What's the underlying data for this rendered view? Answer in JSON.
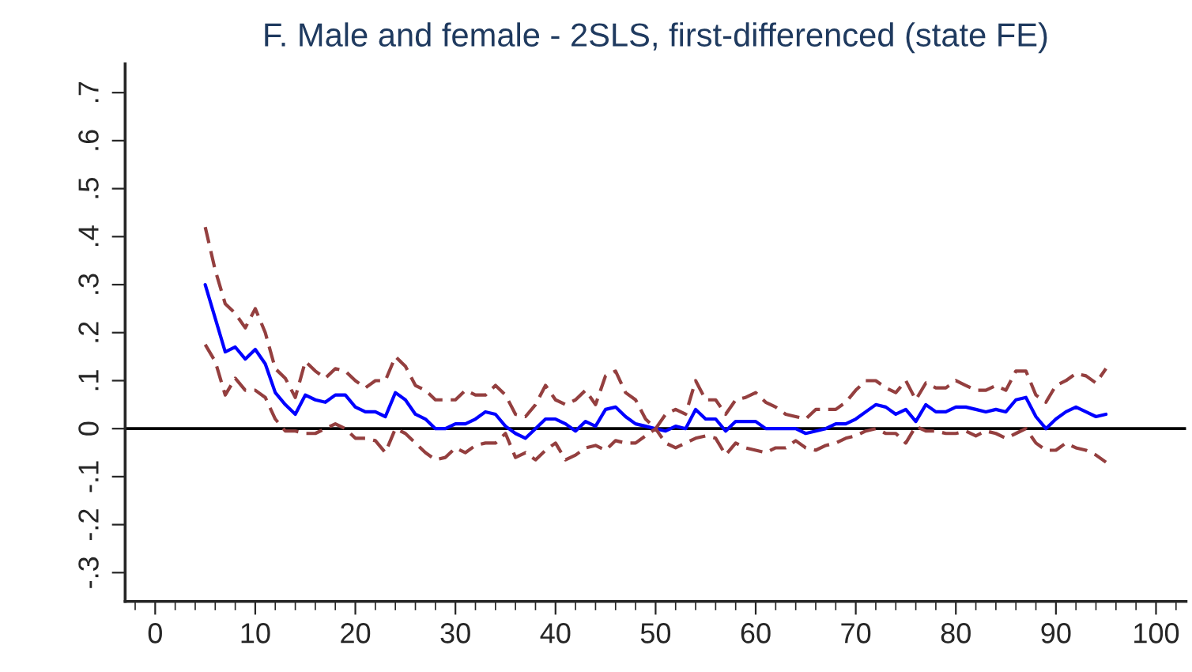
{
  "chart_data": {
    "type": "line",
    "title": "F. Male and female - 2SLS, first-differenced (state FE)",
    "x": [
      5,
      6,
      7,
      8,
      9,
      10,
      11,
      12,
      13,
      14,
      15,
      16,
      17,
      18,
      19,
      20,
      21,
      22,
      23,
      24,
      25,
      26,
      27,
      28,
      29,
      30,
      31,
      32,
      33,
      34,
      35,
      36,
      37,
      38,
      39,
      40,
      41,
      42,
      43,
      44,
      45,
      46,
      47,
      48,
      49,
      50,
      51,
      52,
      53,
      54,
      55,
      56,
      57,
      58,
      59,
      60,
      61,
      62,
      63,
      64,
      65,
      66,
      67,
      68,
      69,
      70,
      71,
      72,
      73,
      74,
      75,
      76,
      77,
      78,
      79,
      80,
      81,
      82,
      83,
      84,
      85,
      86,
      87,
      88,
      89,
      90,
      91,
      92,
      93,
      94,
      95
    ],
    "series": [
      {
        "color": "#0000ff",
        "line_style": "solid",
        "values": [
          0.3,
          0.23,
          0.16,
          0.17,
          0.145,
          0.165,
          0.135,
          0.075,
          0.05,
          0.03,
          0.07,
          0.06,
          0.055,
          0.07,
          0.07,
          0.045,
          0.035,
          0.035,
          0.025,
          0.075,
          0.06,
          0.03,
          0.02,
          0.0,
          0.0,
          0.01,
          0.01,
          0.02,
          0.035,
          0.03,
          0.005,
          -0.01,
          -0.02,
          0.0,
          0.02,
          0.02,
          0.01,
          -0.005,
          0.015,
          0.005,
          0.04,
          0.045,
          0.025,
          0.01,
          0.005,
          0.0,
          -0.005,
          0.005,
          0.0,
          0.04,
          0.02,
          0.02,
          -0.005,
          0.015,
          0.015,
          0.015,
          0.0,
          0.0,
          0.0,
          0.0,
          -0.01,
          -0.005,
          0.0,
          0.01,
          0.01,
          0.02,
          0.035,
          0.05,
          0.045,
          0.03,
          0.04,
          0.015,
          0.05,
          0.035,
          0.035,
          0.045,
          0.045,
          0.04,
          0.035,
          0.04,
          0.035,
          0.06,
          0.065,
          0.025,
          0.0,
          0.02,
          0.035,
          0.045,
          0.035,
          0.025,
          0.03
        ]
      },
      {
        "color": "#943f3f",
        "line_style": "dashed",
        "values": [
          0.42,
          0.33,
          0.26,
          0.24,
          0.21,
          0.25,
          0.2,
          0.125,
          0.105,
          0.065,
          0.14,
          0.12,
          0.105,
          0.125,
          0.12,
          0.1,
          0.085,
          0.1,
          0.1,
          0.15,
          0.13,
          0.09,
          0.08,
          0.06,
          0.06,
          0.06,
          0.08,
          0.07,
          0.07,
          0.09,
          0.07,
          0.03,
          0.025,
          0.05,
          0.09,
          0.06,
          0.05,
          0.06,
          0.08,
          0.05,
          0.11,
          0.12,
          0.075,
          0.06,
          0.02,
          0.0,
          0.03,
          0.04,
          0.03,
          0.1,
          0.06,
          0.06,
          0.03,
          0.06,
          0.065,
          0.075,
          0.055,
          0.045,
          0.03,
          0.025,
          0.02,
          0.04,
          0.04,
          0.04,
          0.055,
          0.08,
          0.1,
          0.1,
          0.085,
          0.075,
          0.1,
          0.06,
          0.095,
          0.085,
          0.085,
          0.1,
          0.09,
          0.08,
          0.08,
          0.09,
          0.08,
          0.12,
          0.12,
          0.07,
          0.055,
          0.09,
          0.1,
          0.115,
          0.11,
          0.095,
          0.125
        ]
      },
      {
        "color": "#943f3f",
        "line_style": "dashed",
        "values": [
          0.175,
          0.14,
          0.07,
          0.105,
          0.08,
          0.08,
          0.065,
          0.02,
          -0.005,
          -0.005,
          -0.01,
          -0.01,
          0.0,
          0.01,
          0.0,
          -0.02,
          -0.02,
          -0.025,
          -0.05,
          0.0,
          -0.01,
          -0.03,
          -0.05,
          -0.065,
          -0.06,
          -0.04,
          -0.05,
          -0.035,
          -0.03,
          -0.03,
          -0.01,
          -0.06,
          -0.05,
          -0.065,
          -0.045,
          -0.03,
          -0.065,
          -0.055,
          -0.04,
          -0.035,
          -0.045,
          -0.025,
          -0.03,
          -0.03,
          -0.015,
          0.0,
          -0.03,
          -0.04,
          -0.03,
          -0.02,
          -0.015,
          -0.02,
          -0.055,
          -0.03,
          -0.04,
          -0.045,
          -0.05,
          -0.04,
          -0.04,
          -0.025,
          -0.04,
          -0.045,
          -0.035,
          -0.03,
          -0.02,
          -0.015,
          -0.005,
          0.0,
          -0.01,
          -0.01,
          -0.03,
          0.005,
          -0.005,
          -0.005,
          -0.01,
          -0.01,
          -0.005,
          -0.015,
          -0.005,
          -0.01,
          -0.02,
          -0.01,
          0.0,
          -0.03,
          -0.045,
          -0.045,
          -0.03,
          -0.04,
          -0.045,
          -0.055,
          -0.07
        ]
      }
    ],
    "xlim": [
      -3,
      103
    ],
    "xticks": [
      0,
      10,
      20,
      30,
      40,
      50,
      60,
      70,
      80,
      90,
      100
    ],
    "ylim": [
      -0.36,
      0.76
    ],
    "yticks": [
      {
        "value": -0.3,
        "label": "-.3"
      },
      {
        "value": -0.2,
        "label": "-.2"
      },
      {
        "value": -0.1,
        "label": "-.1"
      },
      {
        "value": 0,
        "label": "0"
      },
      {
        "value": 0.1,
        "label": ".1"
      },
      {
        "value": 0.2,
        "label": ".2"
      },
      {
        "value": 0.3,
        "label": ".3"
      },
      {
        "value": 0.4,
        "label": ".4"
      },
      {
        "value": 0.5,
        "label": ".5"
      },
      {
        "value": 0.6,
        "label": ".6"
      },
      {
        "value": 0.7,
        "label": ".7"
      }
    ],
    "ref_lines": [
      {
        "axis": "y",
        "value": 0,
        "color": "#000000"
      }
    ],
    "grid": false,
    "legend": false
  }
}
